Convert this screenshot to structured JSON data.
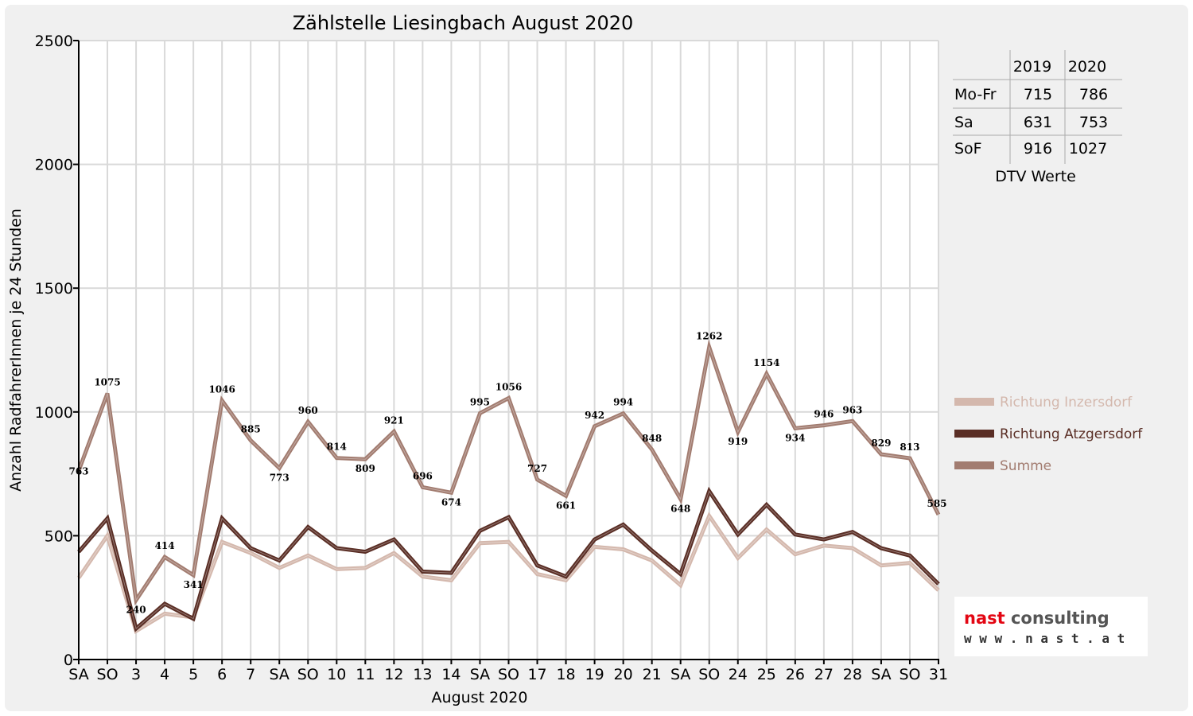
{
  "chart_data": {
    "type": "line",
    "title": "Zählstelle Liesingbach August 2020",
    "xlabel": "August 2020",
    "ylabel": "Anzahl RadfahrerInnen je 24 Stunden",
    "ylim": [
      0,
      2500
    ],
    "yticks": [
      0,
      500,
      1000,
      1500,
      2000,
      2500
    ],
    "grid": true,
    "legend_position": "right",
    "categories": [
      "SA",
      "SO",
      "3",
      "4",
      "5",
      "6",
      "7",
      "SA",
      "SO",
      "10",
      "11",
      "12",
      "13",
      "14",
      "SA",
      "SO",
      "17",
      "18",
      "19",
      "20",
      "21",
      "SA",
      "SO",
      "24",
      "25",
      "26",
      "27",
      "28",
      "SA",
      "SO",
      "31"
    ],
    "weekend_categories": [
      "SO"
    ],
    "weekend_color": "#ff0000",
    "series": [
      {
        "name": "Richtung Inzersdorf",
        "color": "#d4b8ad",
        "values": [
          330,
          500,
          115,
          185,
          170,
          475,
          430,
          370,
          420,
          365,
          370,
          430,
          335,
          320,
          470,
          475,
          345,
          320,
          455,
          445,
          400,
          300,
          580,
          410,
          525,
          425,
          460,
          450,
          380,
          390,
          280
        ]
      },
      {
        "name": "Richtung Atzgersdorf",
        "color": "#5a2e25",
        "values": [
          435,
          570,
          125,
          225,
          165,
          570,
          450,
          400,
          535,
          450,
          435,
          485,
          355,
          350,
          520,
          575,
          380,
          335,
          485,
          545,
          440,
          345,
          680,
          505,
          625,
          505,
          485,
          515,
          450,
          420,
          305
        ]
      },
      {
        "name": "Summe",
        "color": "#a27c70",
        "values": [
          763,
          1075,
          240,
          414,
          341,
          1046,
          885,
          773,
          960,
          814,
          809,
          921,
          696,
          674,
          995,
          1056,
          727,
          661,
          942,
          994,
          848,
          648,
          1262,
          919,
          1154,
          934,
          946,
          963,
          829,
          813,
          585
        ]
      }
    ]
  },
  "dtv_table": {
    "headers": [
      "",
      "2019",
      "2020"
    ],
    "rows": [
      {
        "label": "Mo-Fr",
        "v2019": "715",
        "v2020": "786"
      },
      {
        "label": "Sa",
        "v2019": "631",
        "v2020": "753"
      },
      {
        "label": "SoF",
        "v2019": "916",
        "v2020": "1027"
      }
    ],
    "caption": "DTV Werte"
  },
  "logo": {
    "name_part1": "nast",
    "name_part2": " consulting",
    "url": "w w w . n a s t . a t",
    "color1": "#e30613",
    "color2": "#555555"
  }
}
